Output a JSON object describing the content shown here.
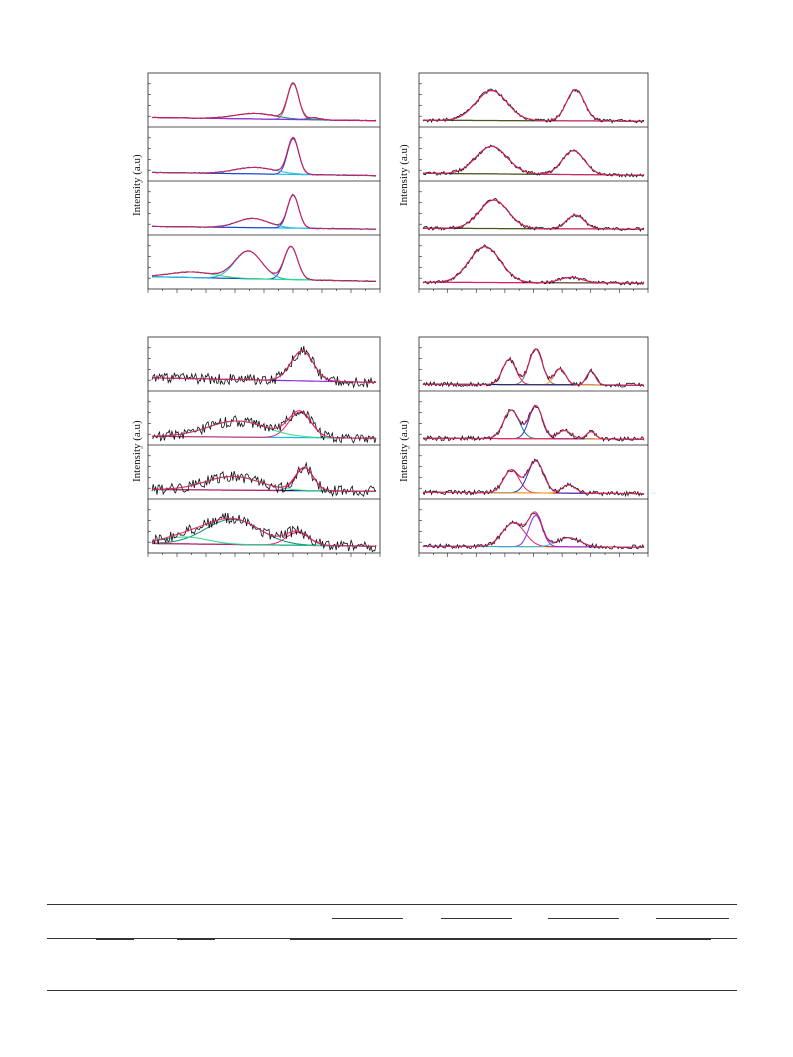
{
  "panel_ylabels": [
    "Intensity (a.u)",
    "Intensity (a.u)",
    "Intensity (a.u)",
    "Intensity (a.u)"
  ],
  "colors": {
    "raw": "#111111",
    "envelope": "#e0206a",
    "blue": "#2233cc",
    "purple": "#8a2be2",
    "cyan": "#22b8e6",
    "green": "#22dd88",
    "olive": "#4d5520",
    "navy": "#13207a",
    "gray": "#7a7a7a",
    "orange": "#f0a030",
    "teal": "#118877"
  },
  "chart_data": [
    {
      "type": "line",
      "panel": "top-left",
      "title": "",
      "xlabel": "",
      "ylabel": "Intensity (a.u)",
      "xlim": [
        0,
        1
      ],
      "ylim": [
        0,
        1
      ],
      "grid": false,
      "legend": "none",
      "noise": 0.01,
      "spectra": [
        {
          "baseline": [
            0.12,
            0.05
          ],
          "peaks": [
            {
              "center": 0.63,
              "width": 0.025,
              "height": 0.78
            },
            {
              "center": 0.46,
              "width": 0.09,
              "height": 0.12
            },
            {
              "center": 0.72,
              "width": 0.03,
              "height": 0.04
            }
          ],
          "components": [
            "gray",
            "teal",
            "purple"
          ]
        },
        {
          "baseline": [
            0.1,
            0.03
          ],
          "peaks": [
            {
              "center": 0.63,
              "width": 0.025,
              "height": 0.78
            },
            {
              "center": 0.46,
              "width": 0.09,
              "height": 0.14
            }
          ],
          "components": [
            "blue",
            "cyan"
          ]
        },
        {
          "baseline": [
            0.1,
            0.04
          ],
          "peaks": [
            {
              "center": 0.63,
              "width": 0.025,
              "height": 0.72
            },
            {
              "center": 0.45,
              "width": 0.07,
              "height": 0.2
            }
          ],
          "components": [
            "blue",
            "cyan"
          ]
        },
        {
          "baseline": [
            0.18,
            0.08
          ],
          "peaks": [
            {
              "center": 0.62,
              "width": 0.03,
              "height": 0.72
            },
            {
              "center": 0.43,
              "width": 0.06,
              "height": 0.6
            },
            {
              "center": 0.18,
              "width": 0.1,
              "height": 0.12
            }
          ],
          "components": [
            "blue",
            "cyan",
            "green"
          ]
        }
      ]
    },
    {
      "type": "line",
      "panel": "top-right",
      "title": "",
      "xlabel": "",
      "ylabel": "Intensity (a.u)",
      "xlim": [
        0,
        1
      ],
      "ylim": [
        0,
        1
      ],
      "grid": false,
      "legend": "none",
      "noise": 0.04,
      "spectra": [
        {
          "baseline": [
            0.06,
            0.04
          ],
          "peaks": [
            {
              "center": 0.31,
              "width": 0.07,
              "height": 0.65
            },
            {
              "center": 0.69,
              "width": 0.04,
              "height": 0.68
            }
          ],
          "components": [
            "envelope",
            "olive"
          ]
        },
        {
          "baseline": [
            0.08,
            0.04
          ],
          "peaks": [
            {
              "center": 0.31,
              "width": 0.07,
              "height": 0.6
            },
            {
              "center": 0.68,
              "width": 0.05,
              "height": 0.52
            }
          ],
          "components": [
            "envelope",
            "olive"
          ]
        },
        {
          "baseline": [
            0.06,
            0.04
          ],
          "peaks": [
            {
              "center": 0.32,
              "width": 0.065,
              "height": 0.62
            },
            {
              "center": 0.69,
              "width": 0.04,
              "height": 0.3
            }
          ],
          "components": [
            "envelope",
            "olive"
          ]
        },
        {
          "baseline": [
            0.06,
            0.04
          ],
          "peaks": [
            {
              "center": 0.28,
              "width": 0.07,
              "height": 0.78
            },
            {
              "center": 0.67,
              "width": 0.05,
              "height": 0.12
            }
          ],
          "components": [
            "olive",
            "envelope"
          ]
        }
      ]
    },
    {
      "type": "line",
      "panel": "bottom-left",
      "title": "",
      "xlabel": "",
      "ylabel": "Intensity (a.u)",
      "xlim": [
        0,
        1
      ],
      "ylim": [
        0,
        1
      ],
      "grid": false,
      "legend": "none",
      "noise": 0.12,
      "spectra": [
        {
          "baseline": [
            0.2,
            0.1
          ],
          "peaks": [
            {
              "center": 0.67,
              "width": 0.05,
              "height": 0.65
            }
          ],
          "components": [
            "gray",
            "green",
            "purple"
          ]
        },
        {
          "baseline": [
            0.1,
            0.06
          ],
          "peaks": [
            {
              "center": 0.66,
              "width": 0.05,
              "height": 0.55
            },
            {
              "center": 0.38,
              "width": 0.13,
              "height": 0.35
            }
          ],
          "components": [
            "envelope",
            "green",
            "cyan"
          ]
        },
        {
          "baseline": [
            0.12,
            0.08
          ],
          "peaks": [
            {
              "center": 0.68,
              "width": 0.04,
              "height": 0.5
            },
            {
              "center": 0.36,
              "width": 0.12,
              "height": 0.3
            }
          ],
          "components": [
            "envelope",
            "green",
            "navy"
          ]
        },
        {
          "baseline": [
            0.12,
            0.06
          ],
          "peaks": [
            {
              "center": 0.36,
              "width": 0.12,
              "height": 0.55
            },
            {
              "center": 0.65,
              "width": 0.05,
              "height": 0.28
            },
            {
              "center": 0.15,
              "width": 0.1,
              "height": 0.15
            }
          ],
          "components": [
            "teal",
            "envelope",
            "green",
            "navy"
          ]
        }
      ]
    },
    {
      "type": "line",
      "panel": "bottom-right",
      "title": "",
      "xlabel": "",
      "ylabel": "Intensity (a.u)",
      "xlim": [
        0,
        1
      ],
      "ylim": [
        0,
        1
      ],
      "grid": false,
      "legend": "none",
      "noise": 0.05,
      "spectra": [
        {
          "baseline": [
            0.06,
            0.04
          ],
          "peaks": [
            {
              "center": 0.39,
              "width": 0.03,
              "height": 0.55
            },
            {
              "center": 0.51,
              "width": 0.03,
              "height": 0.78
            },
            {
              "center": 0.62,
              "width": 0.025,
              "height": 0.35
            },
            {
              "center": 0.76,
              "width": 0.02,
              "height": 0.3
            }
          ],
          "components": [
            "envelope",
            "gray",
            "orange",
            "navy"
          ]
        },
        {
          "baseline": [
            0.06,
            0.04
          ],
          "peaks": [
            {
              "center": 0.4,
              "width": 0.035,
              "height": 0.62
            },
            {
              "center": 0.51,
              "width": 0.03,
              "height": 0.72
            },
            {
              "center": 0.64,
              "width": 0.03,
              "height": 0.18
            },
            {
              "center": 0.76,
              "width": 0.02,
              "height": 0.16
            }
          ],
          "components": [
            "teal",
            "blue",
            "orange",
            "envelope"
          ]
        },
        {
          "baseline": [
            0.06,
            0.03
          ],
          "peaks": [
            {
              "center": 0.4,
              "width": 0.035,
              "height": 0.5
            },
            {
              "center": 0.51,
              "width": 0.035,
              "height": 0.7
            },
            {
              "center": 0.66,
              "width": 0.03,
              "height": 0.18
            }
          ],
          "components": [
            "envelope",
            "blue",
            "orange"
          ]
        },
        {
          "baseline": [
            0.06,
            0.04
          ],
          "peaks": [
            {
              "center": 0.41,
              "width": 0.05,
              "height": 0.52
            },
            {
              "center": 0.51,
              "width": 0.03,
              "height": 0.68
            },
            {
              "center": 0.66,
              "width": 0.05,
              "height": 0.2
            }
          ],
          "components": [
            "envelope",
            "purple",
            "cyan",
            "orange"
          ]
        }
      ]
    }
  ]
}
